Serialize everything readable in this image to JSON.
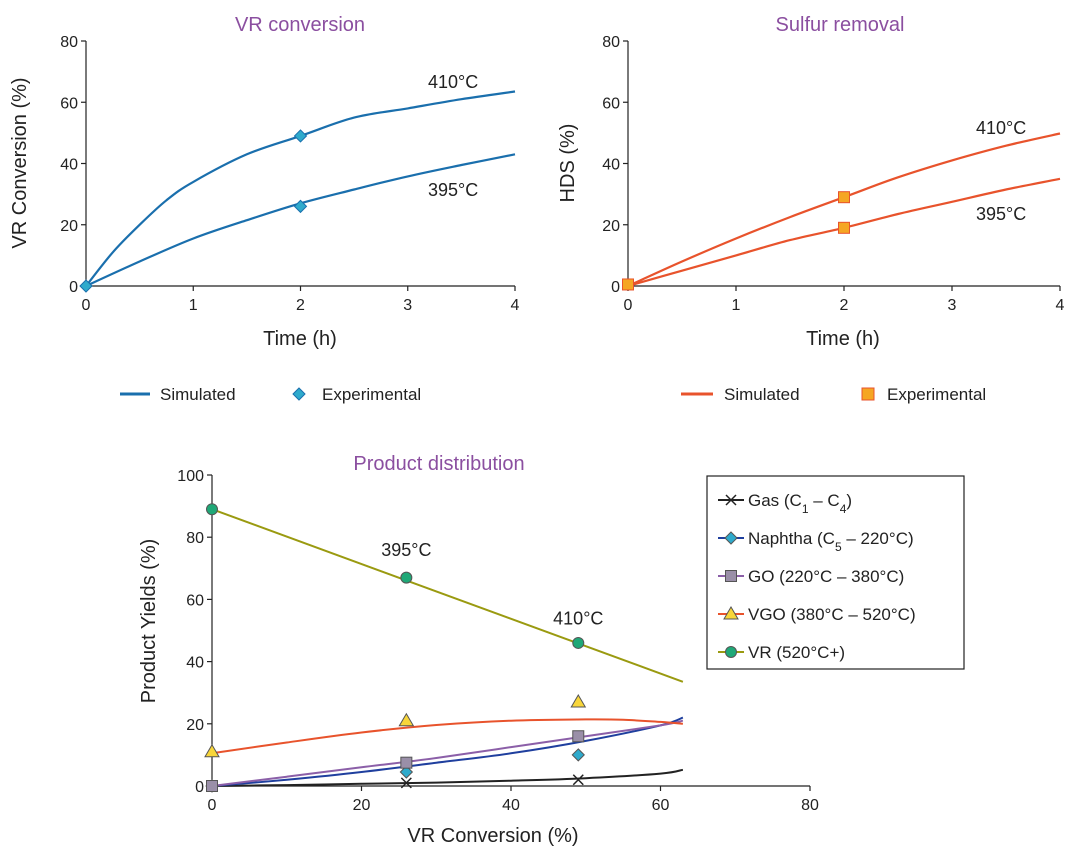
{
  "chart_data": [
    {
      "type": "line",
      "title": "VR conversion",
      "xlabel": "Time (h)",
      "ylabel": "VR Conversion (%)",
      "xlim": [
        0,
        4
      ],
      "ylim": [
        0,
        80
      ],
      "xticks": [
        "0",
        "1",
        "2",
        "3",
        "4"
      ],
      "yticks": [
        "0",
        "20",
        "40",
        "60",
        "80"
      ],
      "series_color": "#1a6fad",
      "marker_color": "#2eaacc",
      "series": [
        {
          "name": "410°C",
          "kind": "Simulated",
          "x": [
            0,
            0.25,
            0.5,
            0.75,
            1,
            1.5,
            2,
            2.5,
            3,
            3.5,
            4
          ],
          "y": [
            0,
            11,
            20,
            28,
            34,
            43,
            49,
            55,
            58,
            61,
            63.5
          ]
        },
        {
          "name": "395°C",
          "kind": "Simulated",
          "x": [
            0,
            0.5,
            1,
            1.5,
            2,
            2.5,
            3,
            3.5,
            4
          ],
          "y": [
            0,
            8,
            15.5,
            21.5,
            27,
            31.5,
            35.8,
            39.5,
            43
          ]
        }
      ],
      "experimental": [
        {
          "x": 0,
          "y": 0
        },
        {
          "x": 2,
          "y": 49
        },
        {
          "x": 2,
          "y": 26
        }
      ],
      "legend": [
        "Simulated",
        "Experimental"
      ]
    },
    {
      "type": "line",
      "title": "Sulfur removal",
      "xlabel": "Time (h)",
      "ylabel": "HDS (%)",
      "xlim": [
        0,
        4
      ],
      "ylim": [
        0,
        80
      ],
      "xticks": [
        "0",
        "1",
        "2",
        "3",
        "4"
      ],
      "yticks": [
        "0",
        "20",
        "40",
        "60",
        "80"
      ],
      "series_color": "#e8532c",
      "marker_color": "#f5a623",
      "series": [
        {
          "name": "410°C",
          "kind": "Simulated",
          "x": [
            0,
            0.5,
            1,
            1.5,
            2,
            2.5,
            3,
            3.5,
            4
          ],
          "y": [
            0,
            8,
            15.5,
            22.5,
            29,
            35.5,
            41,
            45.8,
            49.8
          ]
        },
        {
          "name": "395°C",
          "kind": "Simulated",
          "x": [
            0,
            0.5,
            1,
            1.5,
            2,
            2.5,
            3,
            3.5,
            4
          ],
          "y": [
            0,
            5,
            10,
            15,
            19,
            23.5,
            27.5,
            31.5,
            35
          ]
        }
      ],
      "experimental": [
        {
          "x": 0,
          "y": 0.5
        },
        {
          "x": 2,
          "y": 29
        },
        {
          "x": 2,
          "y": 19
        }
      ],
      "legend": [
        "Simulated",
        "Experimental"
      ]
    },
    {
      "type": "line",
      "title": "Product distribution",
      "xlabel": "VR Conversion  (%)",
      "ylabel": "Product  Yields  (%)",
      "xlim": [
        0,
        80
      ],
      "ylim": [
        0,
        100
      ],
      "xticks": [
        "0",
        "20",
        "40",
        "60",
        "80"
      ],
      "yticks": [
        "0",
        "20",
        "40",
        "60",
        "80",
        "100"
      ],
      "annotations": [
        {
          "text": "395°C",
          "x": 26,
          "y": 74
        },
        {
          "text": "410°C",
          "x": 49,
          "y": 52
        }
      ],
      "series": [
        {
          "name": "Gas (C1 – C4)",
          "name_main": "Gas (C",
          "sub1": "1",
          "mid": " – C",
          "sub2": "4",
          "end": ")",
          "color": "#222222",
          "marker": "x",
          "marker_fill": "#222222",
          "x": [
            0,
            10,
            20,
            30,
            40,
            50,
            60,
            63
          ],
          "y": [
            0,
            0.3,
            0.7,
            1.1,
            1.7,
            2.5,
            4,
            5.2
          ],
          "points": [
            {
              "x": 0,
              "y": 0
            },
            {
              "x": 26,
              "y": 1
            },
            {
              "x": 49,
              "y": 2
            }
          ]
        },
        {
          "name": "Naphtha (C5 – 220°C)",
          "name_main": "Naphtha  (C",
          "sub1": "5",
          "mid": " – 220°C)",
          "sub2": "",
          "end": "",
          "color": "#1f3f9e",
          "marker": "diamond",
          "marker_fill": "#2eaacc",
          "x": [
            0,
            10,
            20,
            30,
            40,
            50,
            60,
            63
          ],
          "y": [
            0,
            2,
            4.5,
            7.5,
            10.5,
            14.5,
            19.5,
            22
          ],
          "points": [
            {
              "x": 0,
              "y": 0
            },
            {
              "x": 26,
              "y": 4.5
            },
            {
              "x": 49,
              "y": 10
            }
          ]
        },
        {
          "name": "GO (220°C – 380°C)",
          "name_main": "GO (220°C – 380°C)",
          "sub1": "",
          "mid": "",
          "sub2": "",
          "end": "",
          "color": "#8b5fa8",
          "marker": "square",
          "marker_fill": "#9a8fa8",
          "x": [
            0,
            10,
            20,
            30,
            40,
            50,
            60,
            63
          ],
          "y": [
            0,
            3,
            6,
            9,
            12.5,
            16,
            19.5,
            21
          ],
          "points": [
            {
              "x": 0,
              "y": 0
            },
            {
              "x": 26,
              "y": 7.5
            },
            {
              "x": 49,
              "y": 16
            }
          ]
        },
        {
          "name": "VGO (380°C – 520°C)",
          "name_main": "VGO (380°C – 520°C)",
          "sub1": "",
          "mid": "",
          "sub2": "",
          "end": "",
          "color": "#e8532c",
          "marker": "triangle",
          "marker_fill": "#f8d63a",
          "x": [
            0,
            10,
            20,
            30,
            40,
            50,
            55,
            60,
            63
          ],
          "y": [
            10.5,
            14,
            17.2,
            19.6,
            21,
            21.4,
            21.3,
            20.6,
            20
          ],
          "points": [
            {
              "x": 0,
              "y": 11
            },
            {
              "x": 26,
              "y": 21
            },
            {
              "x": 49,
              "y": 27
            }
          ]
        },
        {
          "name": "VR (520°C+)",
          "name_main": "VR (520°C+)",
          "sub1": "",
          "mid": "",
          "sub2": "",
          "end": "",
          "color": "#9a9a10",
          "marker": "circle",
          "marker_fill": "#1fa877",
          "x": [
            0,
            63
          ],
          "y": [
            89,
            33.5
          ],
          "points": [
            {
              "x": 0,
              "y": 89
            },
            {
              "x": 26,
              "y": 67
            },
            {
              "x": 49,
              "y": 46
            }
          ]
        }
      ]
    }
  ]
}
